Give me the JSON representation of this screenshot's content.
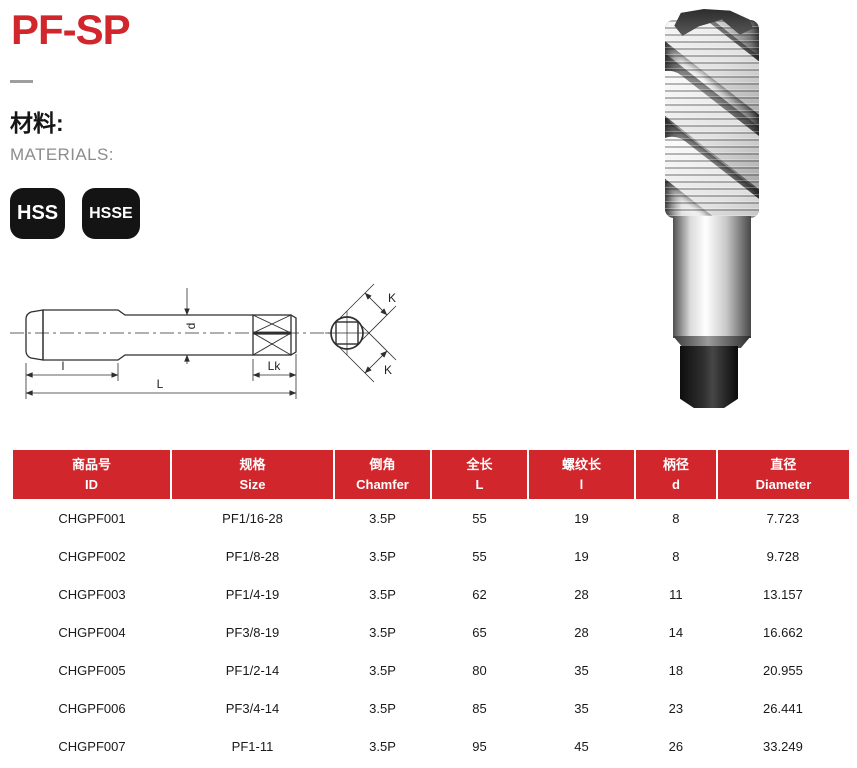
{
  "page": {
    "title": "PF-SP",
    "accent_color": "#d0262c"
  },
  "materials": {
    "label_zh": "材料:",
    "label_en": "MATERIALS:",
    "badges": [
      "HSS",
      "HSSE"
    ]
  },
  "diagram": {
    "labels": {
      "thread_length": "l",
      "overall_length": "L",
      "square_length": "Lk",
      "shank_diameter": "d",
      "square_width_top": "K",
      "square_width_bottom": "K"
    }
  },
  "table": {
    "headers": [
      {
        "key": "id",
        "zh": "商品号",
        "en": "ID"
      },
      {
        "key": "size",
        "zh": "规格",
        "en": "Size"
      },
      {
        "key": "chamfer",
        "zh": "倒角",
        "en": "Chamfer"
      },
      {
        "key": "overall-length",
        "zh": "全长",
        "en": "L"
      },
      {
        "key": "thread-length",
        "zh": "螺纹长",
        "en": "l"
      },
      {
        "key": "shank-diameter",
        "zh": "柄径",
        "en": "d"
      },
      {
        "key": "diameter",
        "zh": "直径",
        "en": "Diameter"
      }
    ],
    "rows": [
      [
        "CHGPF001",
        "PF1/16-28",
        "3.5P",
        "55",
        "19",
        "8",
        "7.723"
      ],
      [
        "CHGPF002",
        "PF1/8-28",
        "3.5P",
        "55",
        "19",
        "8",
        "9.728"
      ],
      [
        "CHGPF003",
        "PF1/4-19",
        "3.5P",
        "62",
        "28",
        "11",
        "13.157"
      ],
      [
        "CHGPF004",
        "PF3/8-19",
        "3.5P",
        "65",
        "28",
        "14",
        "16.662"
      ],
      [
        "CHGPF005",
        "PF1/2-14",
        "3.5P",
        "80",
        "35",
        "18",
        "20.955"
      ],
      [
        "CHGPF006",
        "PF3/4-14",
        "3.5P",
        "85",
        "35",
        "23",
        "26.441"
      ],
      [
        "CHGPF007",
        "PF1-11",
        "3.5P",
        "95",
        "45",
        "26",
        "33.249"
      ]
    ]
  }
}
